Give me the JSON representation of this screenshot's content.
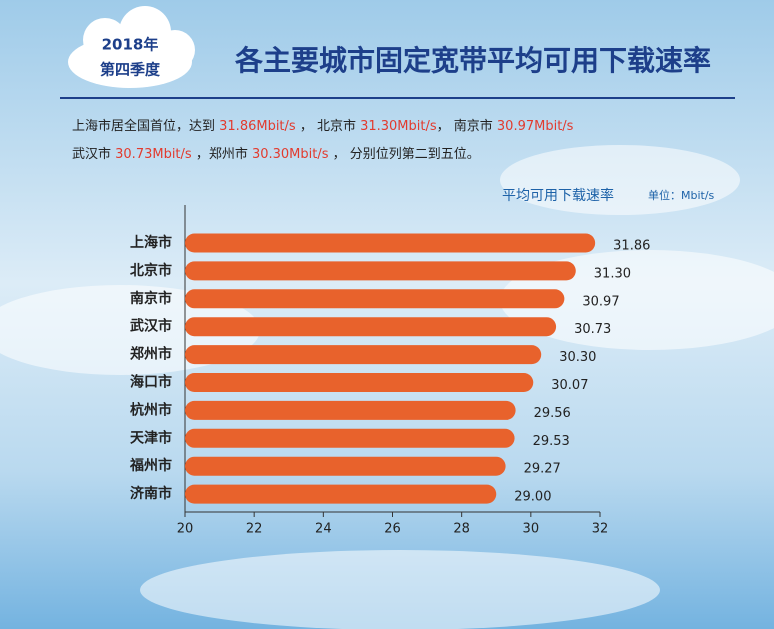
{
  "badge": {
    "year": "2018年",
    "quarter": "第四季度"
  },
  "chart_data": {
    "type": "bar",
    "orientation": "horizontal",
    "title": "各主要城市固定宽带平均可用下载速率",
    "summary_lines": [
      [
        "上海市居全国首位，达到 ",
        "31.86Mbit/s",
        " ，  北京市 ",
        "31.30Mbit/s",
        "，  南京市 ",
        "30.97Mbit/s"
      ],
      [
        "武汉市 ",
        "30.73Mbit/s",
        " ，郑州市 ",
        "30.30Mbit/s",
        " ，   分别位列第二到五位。"
      ]
    ],
    "series_label": "平均可用下载速率",
    "unit": "单位：Mbit/s",
    "categories": [
      "上海市",
      "北京市",
      "南京市",
      "武汉市",
      "郑州市",
      "海口市",
      "杭州市",
      "天津市",
      "福州市",
      "济南市"
    ],
    "values": [
      31.86,
      31.3,
      30.97,
      30.73,
      30.3,
      30.07,
      29.56,
      29.53,
      29.27,
      29.0
    ],
    "value_labels": [
      "31.86",
      "31.30",
      "30.97",
      "30.73",
      "30.30",
      "30.07",
      "29.56",
      "29.53",
      "29.27",
      "29.00"
    ],
    "color": "#e8622c",
    "highlight_color": "#e23b2e",
    "xlim": [
      20,
      32
    ],
    "xticks": [
      20,
      22,
      24,
      26,
      28,
      30,
      32
    ]
  }
}
